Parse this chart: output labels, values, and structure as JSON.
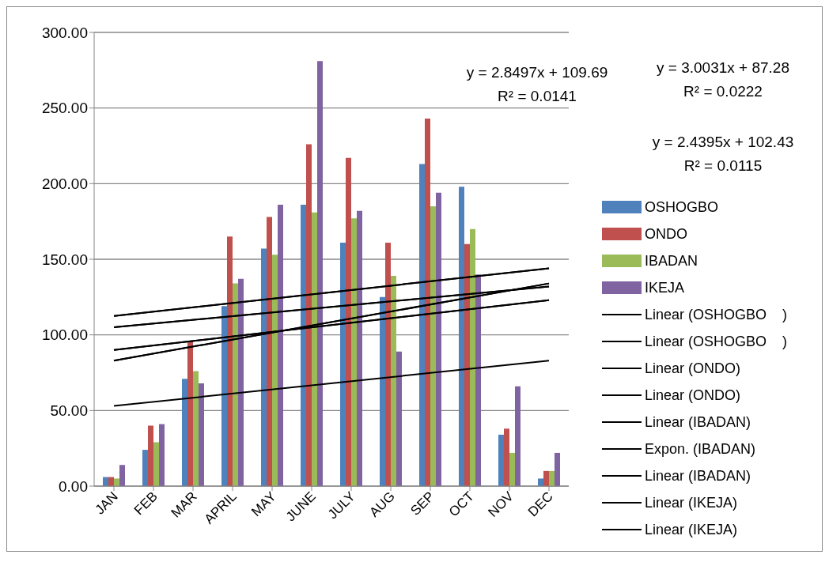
{
  "chart_data": {
    "type": "bar",
    "categories": [
      "JAN",
      "FEB",
      "MAR",
      "APRIL",
      "MAY",
      "JUNE",
      "JULY",
      "AUG",
      "SEP",
      "OCT",
      "NOV",
      "DEC"
    ],
    "series": [
      {
        "name": "OSHOGBO",
        "color": "#4f81bd",
        "values": [
          6,
          24,
          71,
          119,
          157,
          186,
          161,
          125,
          213,
          198,
          34,
          5
        ]
      },
      {
        "name": "ONDO",
        "color": "#c0504d",
        "values": [
          6,
          40,
          96,
          165,
          178,
          226,
          217,
          161,
          243,
          160,
          38,
          10
        ]
      },
      {
        "name": "IBADAN",
        "color": "#9bbb59",
        "values": [
          5,
          29,
          76,
          134,
          153,
          181,
          177,
          139,
          185,
          170,
          22,
          10
        ]
      },
      {
        "name": "IKEJA",
        "color": "#8064a2",
        "values": [
          14,
          41,
          68,
          137,
          186,
          281,
          182,
          89,
          194,
          140,
          66,
          22
        ]
      },
      {
        "name": "Linear (OSHOGBO    )",
        "type": "line",
        "color": "#000000",
        "x": [
          "JAN",
          "DEC"
        ],
        "values": [
          83,
          134
        ]
      },
      {
        "name": "Linear (OSHOGBO    )",
        "type": "line",
        "color": "#000000",
        "x": [
          "JAN",
          "DEC"
        ],
        "values": [
          83,
          134
        ]
      },
      {
        "name": "Linear (ONDO)",
        "type": "line",
        "color": "#000000",
        "x": [
          "JAN",
          "DEC"
        ],
        "values": [
          112.5,
          144
        ]
      },
      {
        "name": "Linear (ONDO)",
        "type": "line",
        "color": "#000000",
        "x": [
          "JAN",
          "DEC"
        ],
        "values": [
          112.5,
          144
        ]
      },
      {
        "name": "Linear (IBADAN)",
        "type": "line",
        "color": "#000000",
        "x": [
          "JAN",
          "DEC"
        ],
        "values": [
          90,
          123
        ]
      },
      {
        "name": "Expon. (IBADAN)",
        "type": "line",
        "color": "#000000",
        "x": [
          "JAN",
          "DEC"
        ],
        "values": [
          53,
          83
        ]
      },
      {
        "name": "Linear (IBADAN)",
        "type": "line",
        "color": "#000000",
        "x": [
          "JAN",
          "DEC"
        ],
        "values": [
          90,
          123
        ]
      },
      {
        "name": "Linear (IKEJA)",
        "type": "line",
        "color": "#000000",
        "x": [
          "JAN",
          "DEC"
        ],
        "values": [
          105,
          132
        ]
      },
      {
        "name": "Linear (IKEJA)",
        "type": "line",
        "color": "#000000",
        "x": [
          "JAN",
          "DEC"
        ],
        "values": [
          105,
          132
        ]
      }
    ],
    "ylim": [
      0,
      300
    ],
    "yticks": [
      {
        "value": 0,
        "label": "0.00"
      },
      {
        "value": 50,
        "label": "50.00"
      },
      {
        "value": 100,
        "label": "100.00"
      },
      {
        "value": 150,
        "label": "150.00"
      },
      {
        "value": 200,
        "label": "200.00"
      },
      {
        "value": 250,
        "label": "250.00"
      },
      {
        "value": 300,
        "label": "300.00"
      }
    ],
    "grid": "y",
    "legend": "right",
    "marker": "none",
    "line_style": "solid",
    "annotations": [
      "y = 2.8497x + 109.69",
      "R² = 0.0141",
      "y = 3.0031x + 87.28",
      "R² = 0.0222",
      "y = 2.4395x + 102.43",
      "R² = 0.0115"
    ]
  }
}
